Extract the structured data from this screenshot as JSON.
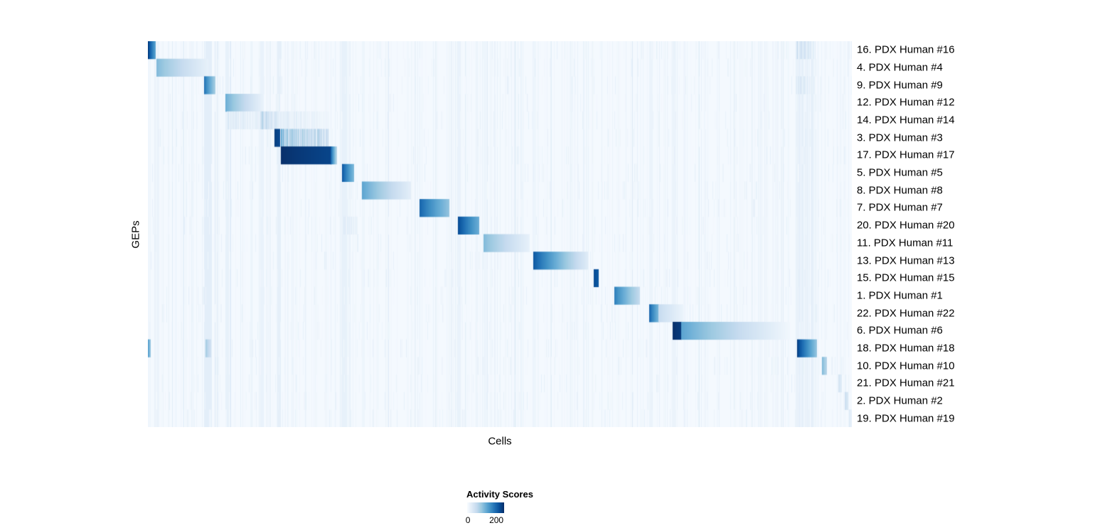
{
  "chart_data": {
    "type": "heatmap",
    "title": "",
    "xlabel": "Cells",
    "ylabel": "GEPs",
    "colormap": "Blues",
    "background_value": 0.015,
    "legend": {
      "title": "Activity Scores",
      "ticks": [
        {
          "label": "0",
          "pos": 0.02
        },
        {
          "label": "200",
          "pos": 0.79
        }
      ]
    },
    "rows": [
      {
        "label": "16. PDX Human #16",
        "blocks": [
          {
            "x0": 0.0,
            "x1": 0.011,
            "v0": 0.95,
            "v1": 0.55
          },
          {
            "x0": 0.921,
            "x1": 0.949,
            "v0": 0.28,
            "v1": 0.1,
            "striped": true
          }
        ]
      },
      {
        "label": "4. PDX Human #4",
        "blocks": [
          {
            "x0": 0.013,
            "x1": 0.085,
            "v0": 0.45,
            "v1": 0.08
          }
        ]
      },
      {
        "label": "9. PDX Human #9",
        "blocks": [
          {
            "x0": 0.08,
            "x1": 0.095,
            "v0": 0.75,
            "v1": 0.35
          },
          {
            "x0": 0.921,
            "x1": 0.949,
            "v0": 0.22,
            "v1": 0.08,
            "striped": true
          }
        ]
      },
      {
        "label": "12. PDX Human #12",
        "blocks": [
          {
            "x0": 0.111,
            "x1": 0.162,
            "v0": 0.5,
            "v1": 0.08
          }
        ]
      },
      {
        "label": "14. PDX Human #14",
        "blocks": [
          {
            "x0": 0.113,
            "x1": 0.16,
            "v0": 0.18,
            "v1": 0.1,
            "striped": true
          },
          {
            "x0": 0.16,
            "x1": 0.187,
            "v0": 0.38,
            "v1": 0.15,
            "striped": true
          },
          {
            "x0": 0.189,
            "x1": 0.257,
            "v0": 0.14,
            "v1": 0.06,
            "striped": true
          }
        ]
      },
      {
        "label": "3. PDX Human #3",
        "blocks": [
          {
            "x0": 0.18,
            "x1": 0.187,
            "v0": 0.95,
            "v1": 0.9
          },
          {
            "x0": 0.189,
            "x1": 0.257,
            "v0": 0.55,
            "v1": 0.28,
            "striped": true
          }
        ]
      },
      {
        "label": "17. PDX Human #17",
        "blocks": [
          {
            "x0": 0.189,
            "x1": 0.26,
            "v0": 1.0,
            "v1": 0.92
          },
          {
            "x0": 0.26,
            "x1": 0.268,
            "v0": 0.8,
            "v1": 0.3
          }
        ]
      },
      {
        "label": "5. PDX Human #5",
        "blocks": [
          {
            "x0": 0.276,
            "x1": 0.292,
            "v0": 0.85,
            "v1": 0.45
          }
        ]
      },
      {
        "label": "8. PDX Human #8",
        "blocks": [
          {
            "x0": 0.305,
            "x1": 0.373,
            "v0": 0.55,
            "v1": 0.1
          }
        ]
      },
      {
        "label": "7. PDX Human #7",
        "blocks": [
          {
            "x0": 0.386,
            "x1": 0.428,
            "v0": 0.8,
            "v1": 0.4
          }
        ]
      },
      {
        "label": "20. PDX Human #20",
        "blocks": [
          {
            "x0": 0.277,
            "x1": 0.297,
            "v0": 0.18,
            "v1": 0.08,
            "striped": true
          },
          {
            "x0": 0.441,
            "x1": 0.47,
            "v0": 0.9,
            "v1": 0.5
          }
        ]
      },
      {
        "label": "11. PDX Human #11",
        "blocks": [
          {
            "x0": 0.477,
            "x1": 0.542,
            "v0": 0.45,
            "v1": 0.08
          }
        ]
      },
      {
        "label": "13. PDX Human #13",
        "blocks": [
          {
            "x0": 0.548,
            "x1": 0.625,
            "v0": 0.85,
            "v1": 0.12
          }
        ]
      },
      {
        "label": "15. PDX Human #15",
        "blocks": [
          {
            "x0": 0.634,
            "x1": 0.64,
            "v0": 0.9,
            "v1": 0.85
          }
        ]
      },
      {
        "label": "1. PDX Human #1",
        "blocks": [
          {
            "x0": 0.663,
            "x1": 0.698,
            "v0": 0.7,
            "v1": 0.25
          }
        ]
      },
      {
        "label": "22. PDX Human #22",
        "blocks": [
          {
            "x0": 0.713,
            "x1": 0.726,
            "v0": 0.8,
            "v1": 0.45
          },
          {
            "x0": 0.726,
            "x1": 0.76,
            "v0": 0.25,
            "v1": 0.06
          }
        ]
      },
      {
        "label": "6. PDX Human #6",
        "blocks": [
          {
            "x0": 0.746,
            "x1": 0.758,
            "v0": 1.0,
            "v1": 0.95
          },
          {
            "x0": 0.758,
            "x1": 0.912,
            "v0": 0.55,
            "v1": 0.03
          }
        ]
      },
      {
        "label": "18. PDX Human #18",
        "blocks": [
          {
            "x0": 0.0,
            "x1": 0.004,
            "v0": 0.55,
            "v1": 0.4
          },
          {
            "x0": 0.082,
            "x1": 0.089,
            "v0": 0.35,
            "v1": 0.2
          },
          {
            "x0": 0.923,
            "x1": 0.95,
            "v0": 0.95,
            "v1": 0.4
          }
        ]
      },
      {
        "label": "10. PDX Human #10",
        "blocks": [
          {
            "x0": 0.958,
            "x1": 0.964,
            "v0": 0.45,
            "v1": 0.3
          }
        ]
      },
      {
        "label": "21. PDX Human #21",
        "blocks": [
          {
            "x0": 0.981,
            "x1": 0.985,
            "v0": 0.18,
            "v1": 0.12
          }
        ]
      },
      {
        "label": "2. PDX Human #2",
        "blocks": [
          {
            "x0": 0.99,
            "x1": 0.994,
            "v0": 0.22,
            "v1": 0.15
          }
        ]
      },
      {
        "label": "19. PDX Human #19",
        "blocks": [
          {
            "x0": 0.996,
            "x1": 1.0,
            "v0": 0.12,
            "v1": 0.08
          }
        ]
      }
    ],
    "shared_bands": [
      {
        "x0": 0.013,
        "x1": 0.016,
        "v": 0.06
      },
      {
        "x0": 0.08,
        "x1": 0.09,
        "v": 0.1
      },
      {
        "x0": 0.111,
        "x1": 0.115,
        "v": 0.08
      },
      {
        "x0": 0.16,
        "x1": 0.164,
        "v": 0.07
      },
      {
        "x0": 0.184,
        "x1": 0.188,
        "v": 0.09
      },
      {
        "x0": 0.276,
        "x1": 0.282,
        "v": 0.08
      },
      {
        "x0": 0.305,
        "x1": 0.308,
        "v": 0.05
      },
      {
        "x0": 0.44,
        "x1": 0.444,
        "v": 0.07
      },
      {
        "x0": 0.477,
        "x1": 0.48,
        "v": 0.05
      },
      {
        "x0": 0.548,
        "x1": 0.551,
        "v": 0.05
      },
      {
        "x0": 0.713,
        "x1": 0.717,
        "v": 0.06
      },
      {
        "x0": 0.745,
        "x1": 0.749,
        "v": 0.06
      },
      {
        "x0": 0.921,
        "x1": 0.949,
        "v": 0.06,
        "striped": true
      }
    ]
  }
}
